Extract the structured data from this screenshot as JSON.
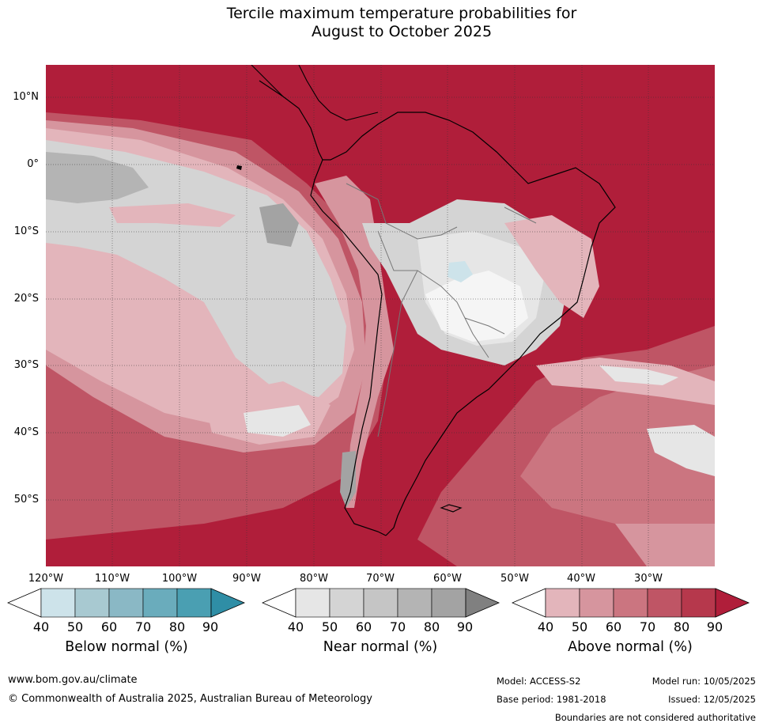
{
  "title": {
    "line1": "Tercile maximum temperature probabilities for",
    "line2": "August to October 2025"
  },
  "map": {
    "region": "South America",
    "lat_labels": [
      "10°N",
      "0°",
      "10°S",
      "20°S",
      "30°S",
      "40°S",
      "50°S"
    ],
    "lon_labels": [
      "120°W",
      "110°W",
      "100°W",
      "90°W",
      "80°W",
      "70°W",
      "60°W",
      "50°W",
      "40°W",
      "30°W"
    ]
  },
  "legends": {
    "below": {
      "title": "Below normal (%)",
      "ticks": [
        "40",
        "50",
        "60",
        "70",
        "80",
        "90"
      ],
      "colors": [
        "#ffffff",
        "#cde3ea",
        "#a8c9d1",
        "#8ab8c5",
        "#6aacbc",
        "#4a9fb2",
        "#2f8ea6"
      ]
    },
    "near": {
      "title": "Near normal (%)",
      "ticks": [
        "40",
        "50",
        "60",
        "70",
        "80",
        "90"
      ],
      "colors": [
        "#ffffff",
        "#e6e6e6",
        "#d4d4d4",
        "#c5c5c5",
        "#b4b4b4",
        "#a3a3a3",
        "#808080"
      ]
    },
    "above": {
      "title": "Above normal (%)",
      "ticks": [
        "40",
        "50",
        "60",
        "70",
        "80",
        "90"
      ],
      "colors": [
        "#ffffff",
        "#e3b5bb",
        "#d6959e",
        "#cb7580",
        "#bf5565",
        "#b6384c",
        "#b01e3a"
      ]
    }
  },
  "footer": {
    "url": "www.bom.gov.au/climate",
    "copyright": "© Commonwealth of Australia 2025, Australian Bureau of Meteorology",
    "model": "Model: ACCESS-S2",
    "model_run": "Model run: 10/05/2025",
    "base_period": "Base period: 1981-2018",
    "issued": "Issued: 12/05/2025",
    "disclaimer": "Boundaries are not considered authoritative"
  }
}
